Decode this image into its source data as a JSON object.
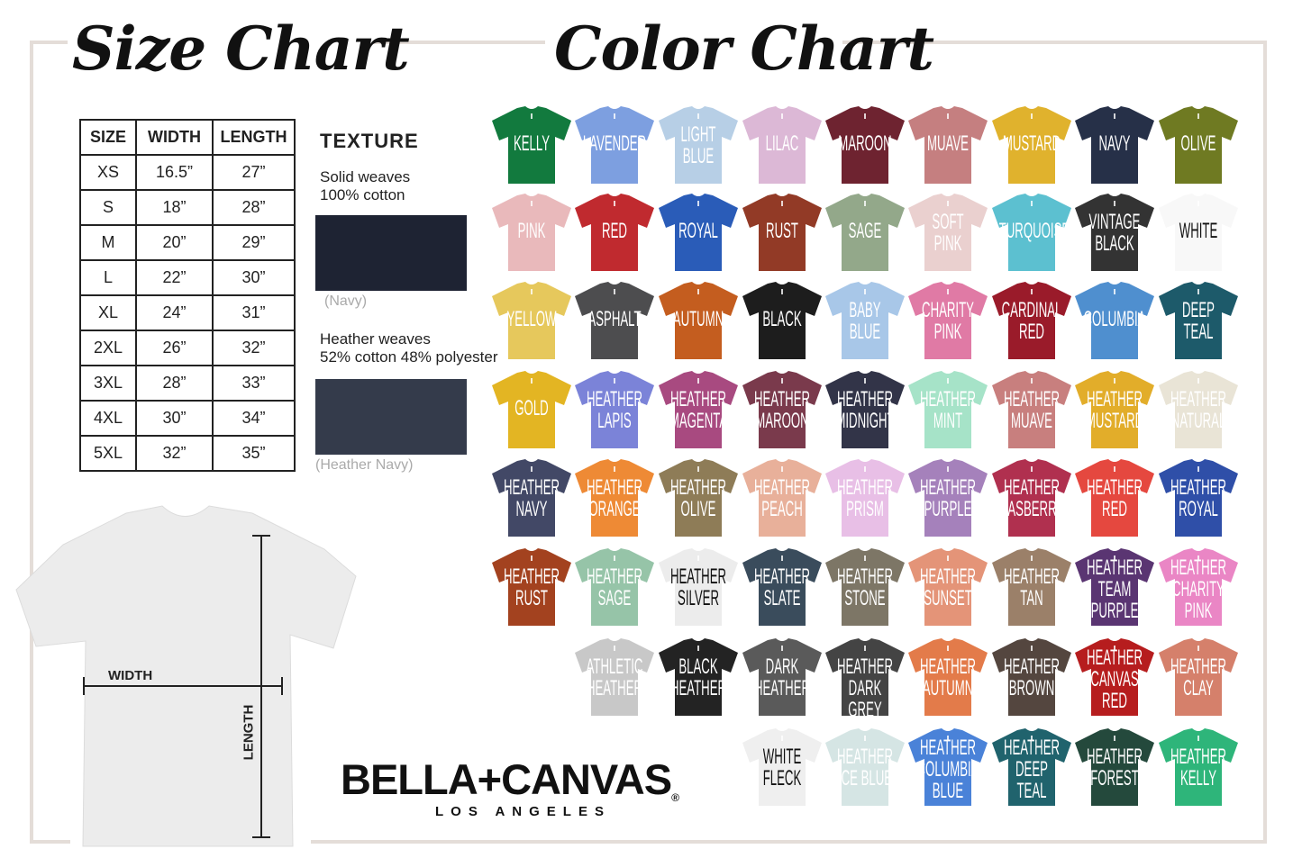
{
  "size_chart": {
    "title": "Size Chart",
    "headers": [
      "SIZE",
      "WIDTH",
      "LENGTH"
    ],
    "rows": [
      [
        "XS",
        "16.5”",
        "27”"
      ],
      [
        "S",
        "18”",
        "28”"
      ],
      [
        "M",
        "20”",
        "29”"
      ],
      [
        "L",
        "22”",
        "30”"
      ],
      [
        "XL",
        "24”",
        "31”"
      ],
      [
        "2XL",
        "26”",
        "32”"
      ],
      [
        "3XL",
        "28”",
        "33”"
      ],
      [
        "4XL",
        "30”",
        "34”"
      ],
      [
        "5XL",
        "32”",
        "35”"
      ]
    ]
  },
  "texture": {
    "title": "TEXTURE",
    "solid": {
      "line1": "Solid weaves",
      "line2": "100% cotton",
      "caption": "(Navy)",
      "color": "#1e2333"
    },
    "heather": {
      "line1": "Heather weaves",
      "line2": "52% cotton 48% polyester",
      "caption": "(Heather Navy)",
      "color": "#343b4b"
    }
  },
  "diagram": {
    "width_label": "WIDTH",
    "length_label": "LENGTH"
  },
  "brand": {
    "name": "BELLA+CANVAS",
    "reg": "®",
    "sub": "LOS ANGELES"
  },
  "color_chart": {
    "title": "Color Chart",
    "rows": [
      {
        "start": 0,
        "items": [
          {
            "lines": [
              "KELLY"
            ],
            "color": "#127a3e"
          },
          {
            "lines": [
              "LAVENDER"
            ],
            "color": "#7d9fe0"
          },
          {
            "lines": [
              "LIGHT",
              "BLUE"
            ],
            "color": "#b7cfe6"
          },
          {
            "lines": [
              "LILAC"
            ],
            "color": "#dcb8d6"
          },
          {
            "lines": [
              "MAROON"
            ],
            "color": "#6e2330"
          },
          {
            "lines": [
              "MUAVE"
            ],
            "color": "#c57f80"
          },
          {
            "lines": [
              "MUSTARD"
            ],
            "color": "#e0b22d"
          },
          {
            "lines": [
              "NAVY"
            ],
            "color": "#263048"
          },
          {
            "lines": [
              "OLIVE"
            ],
            "color": "#6f7a22"
          }
        ]
      },
      {
        "start": 0,
        "items": [
          {
            "lines": [
              "PINK"
            ],
            "color": "#e9b9bb"
          },
          {
            "lines": [
              "RED"
            ],
            "color": "#c02a2f"
          },
          {
            "lines": [
              "ROYAL"
            ],
            "color": "#2a5cb8"
          },
          {
            "lines": [
              "RUST"
            ],
            "color": "#923a26"
          },
          {
            "lines": [
              "SAGE"
            ],
            "color": "#93a88a"
          },
          {
            "lines": [
              "SOFT",
              "PINK"
            ],
            "color": "#ead0cf"
          },
          {
            "lines": [
              "TURQUOISE"
            ],
            "color": "#5cc0d0"
          },
          {
            "lines": [
              "VINTAGE",
              "BLACK"
            ],
            "color": "#333333"
          },
          {
            "lines": [
              "WHITE"
            ],
            "color": "#f8f8f8",
            "text": "#111111"
          }
        ]
      },
      {
        "start": 0,
        "items": [
          {
            "lines": [
              "YELLOW"
            ],
            "color": "#e6c85c"
          },
          {
            "lines": [
              "ASPHALT"
            ],
            "color": "#4d4d4f"
          },
          {
            "lines": [
              "AUTUMN"
            ],
            "color": "#c45d1f"
          },
          {
            "lines": [
              "BLACK"
            ],
            "color": "#1d1d1d"
          },
          {
            "lines": [
              "BABY",
              "BLUE"
            ],
            "color": "#a8c7e8"
          },
          {
            "lines": [
              "CHARITY",
              "PINK"
            ],
            "color": "#e07aa5"
          },
          {
            "lines": [
              "CARDINAL",
              "RED"
            ],
            "color": "#9a1b2a"
          },
          {
            "lines": [
              "COLUMBIA"
            ],
            "color": "#4f8fcf"
          },
          {
            "lines": [
              "DEEP",
              "TEAL"
            ],
            "color": "#1d5a6a"
          }
        ]
      },
      {
        "start": 0,
        "items": [
          {
            "lines": [
              "GOLD"
            ],
            "color": "#e3b523"
          },
          {
            "lines": [
              "HEATHER",
              "LAPIS"
            ],
            "color": "#7b83d8"
          },
          {
            "lines": [
              "HEATHER",
              "MAGENTA"
            ],
            "color": "#a84a80"
          },
          {
            "lines": [
              "HEATHER",
              "MAROON"
            ],
            "color": "#7a3a4c"
          },
          {
            "lines": [
              "HEATHER",
              "MIDNIGHT"
            ],
            "color": "#323448"
          },
          {
            "lines": [
              "HEATHER",
              "MINT"
            ],
            "color": "#a6e3c8"
          },
          {
            "lines": [
              "HEATHER",
              "MUAVE"
            ],
            "color": "#c87f7e"
          },
          {
            "lines": [
              "HEATHER",
              "MUSTARD"
            ],
            "color": "#e2ad2a"
          },
          {
            "lines": [
              "HEATHER",
              "NATURAL"
            ],
            "color": "#e9e4d6"
          }
        ]
      },
      {
        "start": 0,
        "items": [
          {
            "lines": [
              "HEATHER",
              "NAVY"
            ],
            "color": "#424866"
          },
          {
            "lines": [
              "HEATHER",
              "ORANGE"
            ],
            "color": "#ee8a35"
          },
          {
            "lines": [
              "HEATHER",
              "OLIVE"
            ],
            "color": "#8e7c57"
          },
          {
            "lines": [
              "HEATHER",
              "PEACH"
            ],
            "color": "#e8b09a"
          },
          {
            "lines": [
              "HEATHER",
              "PRISM"
            ],
            "color": "#e8bfe6"
          },
          {
            "lines": [
              "HEATHER",
              "PURPLE"
            ],
            "color": "#a581bb"
          },
          {
            "lines": [
              "HEATHER",
              "RASBERRY"
            ],
            "color": "#b0304f"
          },
          {
            "lines": [
              "HEATHER",
              "RED"
            ],
            "color": "#e5483f"
          },
          {
            "lines": [
              "HEATHER",
              "ROYAL"
            ],
            "color": "#2f4fa8"
          }
        ]
      },
      {
        "start": 0,
        "items": [
          {
            "lines": [
              "HEATHER",
              "RUST"
            ],
            "color": "#a3421f"
          },
          {
            "lines": [
              "HEATHER",
              "SAGE"
            ],
            "color": "#96c4a8"
          },
          {
            "lines": [
              "HEATHER",
              "SILVER"
            ],
            "color": "#ececec",
            "text": "#111111"
          },
          {
            "lines": [
              "HEATHER",
              "SLATE"
            ],
            "color": "#3a4c5c"
          },
          {
            "lines": [
              "HEATHER",
              "STONE"
            ],
            "color": "#7d7666"
          },
          {
            "lines": [
              "HEATHER",
              "SUNSET"
            ],
            "color": "#e49478"
          },
          {
            "lines": [
              "HEATHER",
              "TAN"
            ],
            "color": "#9b8069"
          },
          {
            "lines": [
              "HEATHER",
              "TEAM",
              "PURPLE"
            ],
            "color": "#5a3572"
          },
          {
            "lines": [
              "HEATHER",
              "CHARITY",
              "PINK"
            ],
            "color": "#ea86c5"
          }
        ]
      },
      {
        "start": 1,
        "items": [
          {
            "lines": [
              "ATHLETIC",
              "HEATHER"
            ],
            "color": "#c8c8c8"
          },
          {
            "lines": [
              "BLACK",
              "HEATHER"
            ],
            "color": "#232323"
          },
          {
            "lines": [
              "DARK",
              "HEATHER"
            ],
            "color": "#5a5a5a"
          },
          {
            "lines": [
              "HEATHER",
              "DARK GREY"
            ],
            "color": "#444444"
          },
          {
            "lines": [
              "HEATHER",
              "AUTUMN"
            ],
            "color": "#e37b4a"
          },
          {
            "lines": [
              "HEATHER",
              "BROWN"
            ],
            "color": "#54463f"
          },
          {
            "lines": [
              "HEATHER",
              "CANVAS",
              "RED"
            ],
            "color": "#b61d1e"
          },
          {
            "lines": [
              "HEATHER",
              "CLAY"
            ],
            "color": "#d5806b"
          }
        ]
      },
      {
        "start": 3,
        "items": [
          {
            "lines": [
              "WHITE",
              "FLECK"
            ],
            "color": "#efefef",
            "text": "#111111"
          },
          {
            "lines": [
              "HEATHER",
              "ICE BLUE"
            ],
            "color": "#d5e5e4"
          },
          {
            "lines": [
              "HEATHER",
              "COLUMBIA",
              "BLUE"
            ],
            "color": "#4a82d8"
          },
          {
            "lines": [
              "HEATHER",
              "DEEP",
              "TEAL"
            ],
            "color": "#20636d"
          },
          {
            "lines": [
              "HEATHER",
              "FOREST"
            ],
            "color": "#24493c"
          },
          {
            "lines": [
              "HEATHER",
              "KELLY"
            ],
            "color": "#2eb57a"
          }
        ]
      }
    ]
  }
}
